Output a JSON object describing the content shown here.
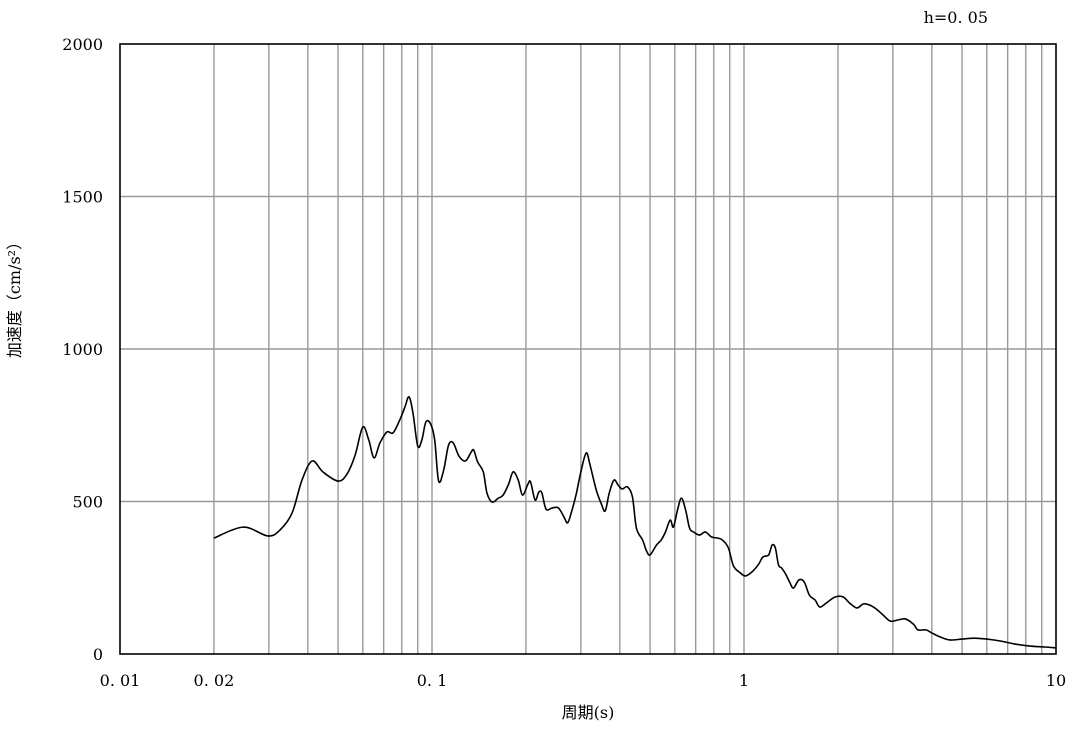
{
  "chart_data": {
    "type": "line",
    "title": "",
    "annotation": "h=0. 05",
    "xlabel": "周期(s)",
    "ylabel": "加速度（cm/s²）",
    "xscale": "log",
    "xlim": [
      0.01,
      10
    ],
    "ylim": [
      0,
      2000
    ],
    "x_ticks": [
      0.01,
      0.02,
      0.1,
      1,
      10
    ],
    "x_tick_labels": [
      "0. 01",
      "0. 02",
      "0. 1",
      "1",
      "10"
    ],
    "y_ticks": [
      0,
      500,
      1000,
      1500,
      2000
    ],
    "y_tick_labels": [
      "0",
      "500",
      "1000",
      "1500",
      "2000"
    ],
    "grid": true,
    "legend": "none",
    "colors": {
      "series": "#000000",
      "grid": "#999999",
      "frame": "#000000"
    },
    "series": [
      {
        "x": [
          0.02,
          0.0248,
          0.0298,
          0.0326,
          0.0356,
          0.0383,
          0.0413,
          0.0447,
          0.05,
          0.0534,
          0.0567,
          0.06,
          0.0627,
          0.0652,
          0.0681,
          0.0717,
          0.075,
          0.0788,
          0.0819,
          0.0844,
          0.0869,
          0.09,
          0.0928,
          0.0956,
          0.099,
          0.102,
          0.105,
          0.109,
          0.113,
          0.117,
          0.122,
          0.128,
          0.133,
          0.136,
          0.14,
          0.146,
          0.15,
          0.156,
          0.163,
          0.169,
          0.176,
          0.182,
          0.189,
          0.195,
          0.203,
          0.207,
          0.214,
          0.22,
          0.225,
          0.232,
          0.243,
          0.254,
          0.264,
          0.272,
          0.28,
          0.29,
          0.3,
          0.312,
          0.321,
          0.336,
          0.349,
          0.359,
          0.37,
          0.383,
          0.395,
          0.407,
          0.423,
          0.439,
          0.452,
          0.473,
          0.487,
          0.5,
          0.524,
          0.543,
          0.56,
          0.58,
          0.594,
          0.612,
          0.63,
          0.65,
          0.669,
          0.689,
          0.72,
          0.752,
          0.786,
          0.822,
          0.852,
          0.891,
          0.925,
          0.973,
          1.01,
          1.06,
          1.11,
          1.15,
          1.2,
          1.23,
          1.26,
          1.29,
          1.32,
          1.36,
          1.4,
          1.44,
          1.5,
          1.56,
          1.62,
          1.69,
          1.75,
          1.85,
          1.96,
          2.08,
          2.18,
          2.3,
          2.41,
          2.52,
          2.65,
          2.79,
          2.94,
          3.1,
          3.29,
          3.49,
          3.61,
          3.83,
          4.0,
          4.25,
          4.57,
          5.0,
          5.49,
          6.0,
          6.59,
          7.35,
          8.24,
          9.2,
          10
        ],
        "y": [
          380,
          416,
          387,
          407,
          462,
          570,
          633,
          597,
          567,
          590,
          652,
          744,
          702,
          643,
          692,
          728,
          725,
          767,
          810,
          843,
          790,
          682,
          702,
          761,
          754,
          702,
          567,
          603,
          685,
          692,
          649,
          633,
          659,
          669,
          630,
          597,
          528,
          498,
          511,
          521,
          557,
          597,
          570,
          521,
          557,
          564,
          505,
          531,
          528,
          475,
          479,
          479,
          452,
          430,
          466,
          525,
          597,
          659,
          620,
          538,
          492,
          469,
          528,
          570,
          554,
          541,
          548,
          515,
          413,
          374,
          338,
          325,
          357,
          374,
          400,
          439,
          416,
          472,
          511,
          472,
          413,
          400,
          390,
          400,
          384,
          380,
          374,
          348,
          289,
          266,
          256,
          269,
          292,
          318,
          325,
          357,
          348,
          292,
          282,
          262,
          236,
          216,
          243,
          236,
          193,
          177,
          154,
          170,
          187,
          187,
          167,
          151,
          164,
          161,
          148,
          128,
          108,
          111,
          115,
          98,
          79,
          79,
          69,
          56,
          46,
          49,
          52,
          49,
          43,
          33,
          26,
          23,
          20
        ]
      }
    ]
  }
}
